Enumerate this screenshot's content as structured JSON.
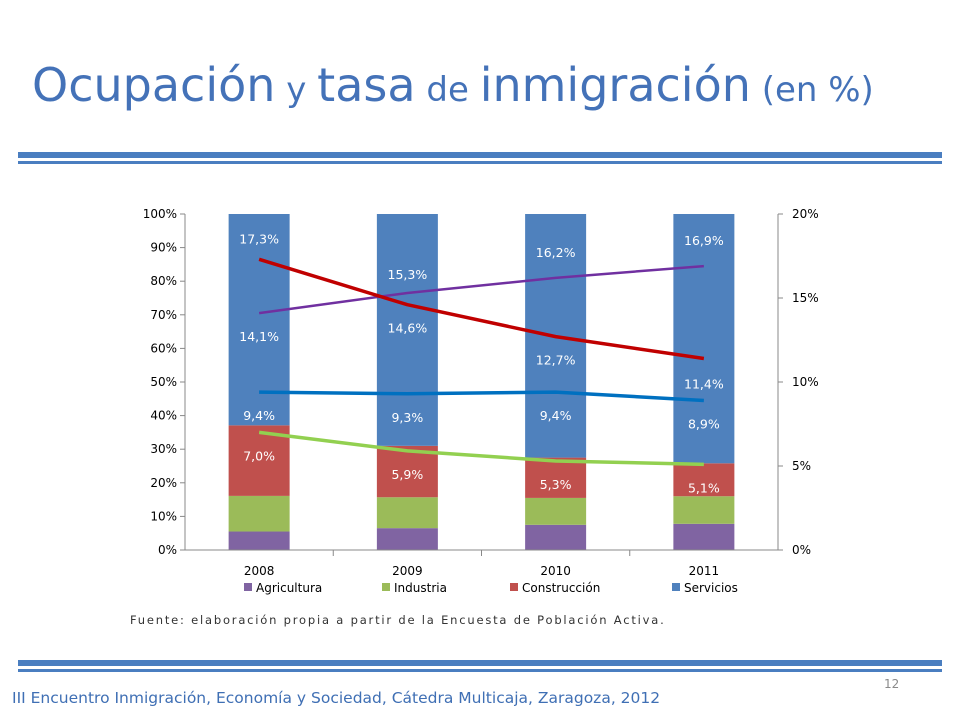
{
  "slide": {
    "title_parts": [
      "Ocupación",
      " y ",
      "tasa",
      " de ",
      "inmigración",
      " (en %)"
    ],
    "source": "Fuente: elaboración propia a partir de la Encuesta de Población Activa.",
    "page_number": "12",
    "footer": "III Encuentro Inmigración, Economía y Sociedad, Cátedra Multicaja, Zaragoza, 2012"
  },
  "colors": {
    "title": "#4472b8",
    "agricultura": "#8064a2",
    "industria": "#9bbb59",
    "construccion": "#c0504d",
    "servicios": "#4f81bd",
    "line_servicios": "#7030a0",
    "line_construccion": "#c00000",
    "line_industria": "#0070c0",
    "line_agricultura": "#92d050"
  },
  "chart_data": {
    "type": "bar",
    "stacked": true,
    "categories": [
      "2008",
      "2009",
      "2010",
      "2011"
    ],
    "y_left": {
      "ticks": [
        "0%",
        "10%",
        "20%",
        "30%",
        "40%",
        "50%",
        "60%",
        "70%",
        "80%",
        "90%",
        "100%"
      ],
      "ylim": [
        0,
        100
      ]
    },
    "y_right": {
      "ticks": [
        "0%",
        "5%",
        "10%",
        "15%",
        "20%"
      ],
      "ylim": [
        0,
        20
      ]
    },
    "series": [
      {
        "name": "Agricultura",
        "values": [
          5.5,
          6.5,
          7.5,
          7.8
        ]
      },
      {
        "name": "Industria",
        "values": [
          10.6,
          9.2,
          8.0,
          8.2
        ]
      },
      {
        "name": "Construcción",
        "values": [
          21.0,
          15.3,
          12.0,
          9.8
        ]
      },
      {
        "name": "Servicios",
        "values": [
          62.9,
          69.0,
          72.5,
          74.2
        ]
      }
    ],
    "lines": [
      {
        "color_key": "line_servicios",
        "values": [
          14.1,
          15.3,
          16.2,
          16.9
        ],
        "labels": [
          "14,1%",
          "15,3%",
          "16,2%",
          "16,9%"
        ]
      },
      {
        "color_key": "line_construccion",
        "values": [
          17.3,
          14.6,
          12.7,
          11.4
        ],
        "labels": [
          "17,3%",
          "14,6%",
          "12,7%",
          "11,4%"
        ]
      },
      {
        "color_key": "line_industria",
        "values": [
          9.4,
          9.3,
          9.4,
          8.9
        ],
        "labels": [
          "9,4%",
          "9,3%",
          "9,4%",
          "8,9%"
        ]
      },
      {
        "color_key": "line_agricultura",
        "values": [
          7.0,
          5.9,
          5.3,
          5.1
        ],
        "labels": [
          "7,0%",
          "5,9%",
          "5,3%",
          "5,1%"
        ]
      }
    ],
    "legend": [
      "Agricultura",
      "Industria",
      "Construcción",
      "Servicios"
    ],
    "legend_position": "bottom",
    "grid": false
  }
}
